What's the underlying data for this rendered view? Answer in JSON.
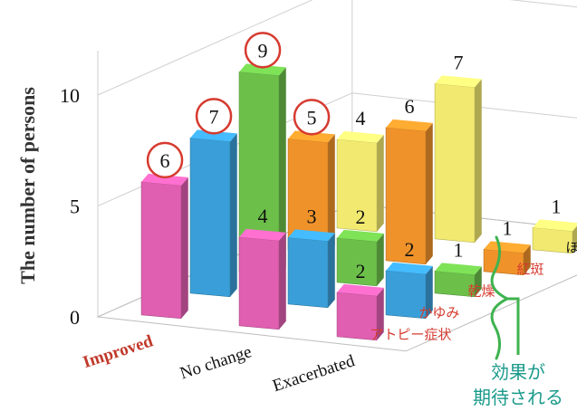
{
  "chart_data": {
    "type": "bar",
    "subtype": "3d-column",
    "ylabel": "The number of persons",
    "yticks": [
      0,
      5,
      10
    ],
    "ylim": [
      0,
      12
    ],
    "categories": [
      "Improved",
      "No change",
      "Exacerbated"
    ],
    "highlight_category": "Improved",
    "series": [
      {
        "name": "アトピー症状",
        "color": "#e05fb0",
        "values": [
          6,
          4,
          2
        ],
        "label_color": "#d63a2f"
      },
      {
        "name": "かゆみ",
        "color": "#3a9fd8",
        "values": [
          7,
          3,
          2
        ],
        "label_color": "#d63a2f"
      },
      {
        "name": "乾燥",
        "color": "#6cc04a",
        "values": [
          9,
          2,
          1
        ],
        "label_color": "#d63a2f"
      },
      {
        "name": "紅斑",
        "color": "#f0922a",
        "values": [
          5,
          6,
          1
        ],
        "label_color": "#d63a2f"
      },
      {
        "name": "ほてり",
        "color": "#f2ea70",
        "values": [
          4,
          7,
          1
        ],
        "label_color": "#111111"
      }
    ],
    "circled_values": [
      [
        0,
        0
      ],
      [
        1,
        0
      ],
      [
        2,
        0
      ],
      [
        3,
        0
      ]
    ],
    "annotation": [
      "効果が",
      "期待される"
    ]
  },
  "colors": {
    "circle": "#d63a2f",
    "bracket": "#3fb34f",
    "note": "#1a9a8a"
  }
}
